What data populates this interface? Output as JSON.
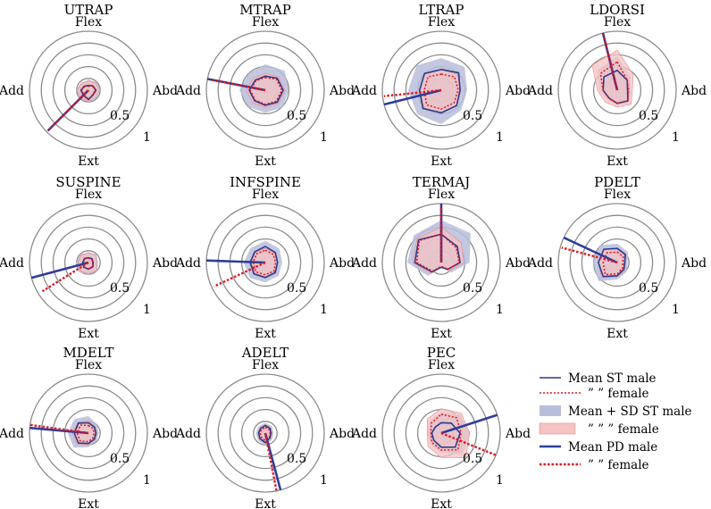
{
  "colors": {
    "st_male": "#2b3a8c",
    "st_female": "#e0141e",
    "sd_male_fill": "#b8bdd9",
    "sd_female_fill": "#f6c3c3",
    "pd_male": "#2e3d99",
    "pd_female": "#e0141e",
    "grid": "#8c8c8c"
  },
  "chart_data": {
    "type": "radar",
    "axes_labels": {
      "top": "Flex",
      "right": "Abd",
      "bottom": "Ext",
      "left": "Add"
    },
    "radial_ticks": [
      "0.5",
      "1"
    ],
    "rlim": [
      0,
      1.25
    ],
    "grid_rings": [
      0.25,
      0.5,
      0.75,
      1.0,
      1.25
    ],
    "angles_deg": [
      0,
      45,
      90,
      135,
      180,
      225,
      270,
      315
    ],
    "angle_convention": "0 = Flex (up), 90 = Abd (right), 180 = Ext (down), 270 = Add (left), clockwise",
    "legend": [
      {
        "key": "st_male",
        "label": "Mean ST male",
        "style": "line"
      },
      {
        "key": "st_female",
        "label": "”   ”  female",
        "style": "dotted"
      },
      {
        "key": "sd_male",
        "label": "Mean + SD ST male",
        "style": "fill-blue"
      },
      {
        "key": "sd_female",
        "label": "”     ”    ”  female",
        "style": "fill-red"
      },
      {
        "key": "pd_male",
        "label": "Mean PD male",
        "style": "thick-line"
      },
      {
        "key": "pd_female",
        "label": "”   ”  female",
        "style": "thick-dotted"
      }
    ],
    "panels": [
      {
        "title": "UTRAP",
        "st_male": [
          0.1,
          0.13,
          0.16,
          0.14,
          0.2,
          0.15,
          0.16,
          0.12
        ],
        "st_female": [
          0.09,
          0.12,
          0.15,
          0.13,
          0.19,
          0.14,
          0.15,
          0.11
        ],
        "sd_male": [
          0.22,
          0.25,
          0.26,
          0.24,
          0.26,
          0.24,
          0.26,
          0.22
        ],
        "sd_female": [
          0.2,
          0.22,
          0.24,
          0.22,
          0.25,
          0.23,
          0.24,
          0.21
        ],
        "pd_male": {
          "angle": 225,
          "r": 1.22
        },
        "pd_female": {
          "angle": 225,
          "r": 1.2
        }
      },
      {
        "title": "MTRAP",
        "st_male": [
          0.3,
          0.36,
          0.38,
          0.36,
          0.32,
          0.32,
          0.34,
          0.3
        ],
        "st_female": [
          0.27,
          0.33,
          0.35,
          0.33,
          0.3,
          0.3,
          0.32,
          0.28
        ],
        "sd_male": [
          0.55,
          0.58,
          0.5,
          0.52,
          0.48,
          0.5,
          0.55,
          0.5
        ],
        "sd_female": [
          0.36,
          0.4,
          0.42,
          0.4,
          0.36,
          0.38,
          0.4,
          0.36
        ],
        "pd_male": {
          "angle": 281,
          "r": 1.25
        },
        "pd_female": {
          "angle": 281,
          "r": 1.2
        }
      },
      {
        "title": "LTRAP",
        "st_male": [
          0.44,
          0.52,
          0.4,
          0.46,
          0.48,
          0.55,
          0.46,
          0.5
        ],
        "st_female": [
          0.34,
          0.4,
          0.36,
          0.38,
          0.4,
          0.44,
          0.36,
          0.4
        ],
        "sd_male": [
          0.68,
          0.7,
          0.55,
          0.6,
          0.72,
          0.72,
          0.7,
          0.74
        ],
        "sd_female": [
          0.44,
          0.48,
          0.42,
          0.46,
          0.5,
          0.52,
          0.46,
          0.5
        ],
        "pd_male": {
          "angle": 256,
          "r": 1.25
        },
        "pd_female": {
          "angle": 264,
          "r": 1.22
        }
      },
      {
        "title": "LDORSI",
        "st_male": [
          0.42,
          0.3,
          0.22,
          0.32,
          0.28,
          0.24,
          0.3,
          0.4
        ],
        "st_female": [
          0.6,
          0.3,
          0.24,
          0.32,
          0.28,
          0.24,
          0.3,
          0.5
        ],
        "sd_male": [
          0.72,
          0.4,
          0.28,
          0.38,
          0.32,
          0.3,
          0.38,
          0.6
        ],
        "sd_female": [
          0.85,
          0.48,
          0.32,
          0.42,
          0.36,
          0.36,
          0.42,
          0.75
        ],
        "pd_male": {
          "angle": 346,
          "r": 1.25
        },
        "pd_female": {
          "angle": 346,
          "r": 1.22
        }
      },
      {
        "title": "SUSPINE",
        "st_male": [
          0.1,
          0.11,
          0.1,
          0.13,
          0.14,
          0.14,
          0.12,
          0.12
        ],
        "st_female": [
          0.09,
          0.1,
          0.09,
          0.12,
          0.13,
          0.13,
          0.11,
          0.11
        ],
        "sd_male": [
          0.22,
          0.24,
          0.2,
          0.26,
          0.26,
          0.28,
          0.26,
          0.24
        ],
        "sd_female": [
          0.2,
          0.22,
          0.18,
          0.24,
          0.24,
          0.25,
          0.22,
          0.22
        ],
        "pd_male": {
          "angle": 255,
          "r": 1.25
        },
        "pd_female": {
          "angle": 238,
          "r": 1.15
        }
      },
      {
        "title": "INFSPINE",
        "st_male": [
          0.34,
          0.3,
          0.26,
          0.3,
          0.32,
          0.34,
          0.32,
          0.32
        ],
        "st_female": [
          0.26,
          0.24,
          0.22,
          0.26,
          0.26,
          0.28,
          0.26,
          0.26
        ],
        "sd_male": [
          0.46,
          0.42,
          0.36,
          0.4,
          0.42,
          0.46,
          0.46,
          0.44
        ],
        "sd_female": [
          0.3,
          0.28,
          0.26,
          0.3,
          0.3,
          0.32,
          0.3,
          0.3
        ],
        "pd_male": {
          "angle": 272,
          "r": 1.25
        },
        "pd_female": {
          "angle": 245,
          "r": 1.2
        }
      },
      {
        "title": "TERMAJ",
        "st_male": [
          0.6,
          0.48,
          0.4,
          0.2,
          0.1,
          0.28,
          0.56,
          0.68
        ],
        "st_female": [
          0.6,
          0.45,
          0.38,
          0.2,
          0.08,
          0.26,
          0.52,
          0.66
        ],
        "sd_male": [
          0.9,
          0.88,
          0.6,
          0.3,
          0.12,
          0.4,
          0.72,
          0.82
        ],
        "sd_female": [
          0.75,
          0.6,
          0.48,
          0.24,
          0.1,
          0.32,
          0.6,
          0.72
        ],
        "pd_male": {
          "angle": 0,
          "r": 1.25
        },
        "pd_female": {
          "angle": 0,
          "r": 1.2
        }
      },
      {
        "title": "PDELT",
        "st_male": [
          0.3,
          0.24,
          0.16,
          0.2,
          0.28,
          0.42,
          0.4,
          0.4
        ],
        "st_female": [
          0.22,
          0.18,
          0.12,
          0.16,
          0.24,
          0.36,
          0.3,
          0.3
        ],
        "sd_male": [
          0.4,
          0.32,
          0.22,
          0.28,
          0.36,
          0.56,
          0.52,
          0.52
        ],
        "sd_female": [
          0.3,
          0.26,
          0.18,
          0.22,
          0.3,
          0.46,
          0.4,
          0.4
        ],
        "pd_male": {
          "angle": 295,
          "r": 1.25
        },
        "pd_female": {
          "angle": 285,
          "r": 1.22
        }
      },
      {
        "title": "MDELT",
        "st_male": [
          0.22,
          0.18,
          0.16,
          0.18,
          0.22,
          0.3,
          0.3,
          0.3
        ],
        "st_female": [
          0.16,
          0.14,
          0.12,
          0.14,
          0.18,
          0.24,
          0.24,
          0.24
        ],
        "sd_male": [
          0.36,
          0.26,
          0.22,
          0.24,
          0.3,
          0.44,
          0.44,
          0.42
        ],
        "sd_female": [
          0.26,
          0.2,
          0.18,
          0.2,
          0.24,
          0.34,
          0.34,
          0.32
        ],
        "pd_male": {
          "angle": 275,
          "r": 1.25
        },
        "pd_female": {
          "angle": 278,
          "r": 1.25
        }
      },
      {
        "title": "ADELT",
        "st_male": [
          0.16,
          0.14,
          0.12,
          0.14,
          0.2,
          0.16,
          0.14,
          0.14
        ],
        "st_female": [
          0.12,
          0.11,
          0.1,
          0.12,
          0.16,
          0.12,
          0.11,
          0.11
        ],
        "sd_male": [
          0.22,
          0.2,
          0.18,
          0.2,
          0.26,
          0.22,
          0.2,
          0.2
        ],
        "sd_female": [
          0.18,
          0.16,
          0.14,
          0.16,
          0.22,
          0.18,
          0.16,
          0.16
        ],
        "pd_male": {
          "angle": 165,
          "r": 1.25
        },
        "pd_female": {
          "angle": 169,
          "r": 1.25
        }
      },
      {
        "title": "PEC",
        "st_male": [
          0.22,
          0.3,
          0.4,
          0.42,
          0.3,
          0.22,
          0.2,
          0.18
        ],
        "st_female": [
          0.4,
          0.46,
          0.42,
          0.5,
          0.36,
          0.28,
          0.22,
          0.3
        ],
        "sd_male": [
          0.44,
          0.56,
          0.62,
          0.64,
          0.42,
          0.34,
          0.3,
          0.36
        ],
        "sd_female": [
          0.52,
          0.6,
          0.6,
          0.74,
          0.52,
          0.4,
          0.3,
          0.42
        ],
        "pd_male": {
          "angle": 72,
          "r": 1.25
        },
        "pd_female": {
          "angle": 112,
          "r": 1.25
        }
      }
    ]
  }
}
